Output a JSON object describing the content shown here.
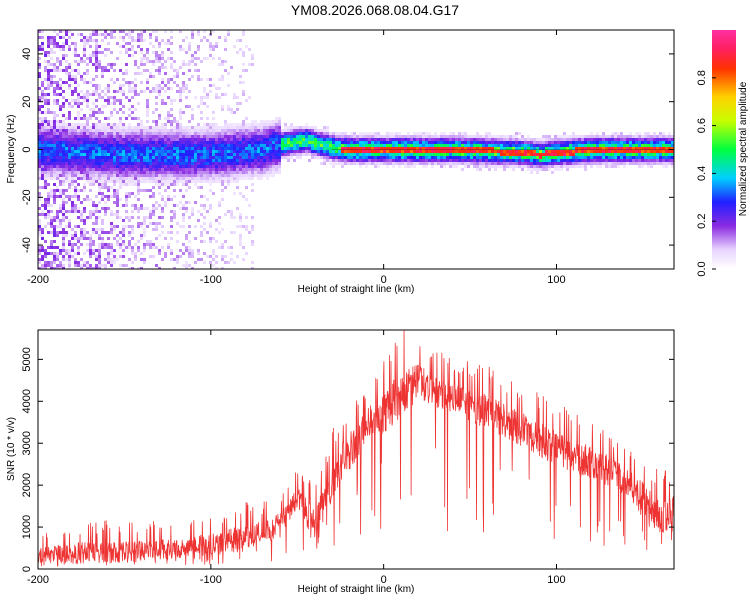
{
  "title": "YM08.2026.068.08.04.G17",
  "chart_data": [
    {
      "type": "heatmap",
      "name": "spectrogram",
      "xlabel": "Height of straight line (km)",
      "ylabel": "Frequency (Hz)",
      "xlim": [
        -200,
        168
      ],
      "ylim": [
        -50,
        50
      ],
      "xticks": [
        -200,
        -100,
        0,
        100
      ],
      "yticks": [
        -40,
        -20,
        0,
        20,
        40
      ],
      "colorbar": {
        "label": "Normalized spectral amplitude",
        "range": [
          0,
          1
        ],
        "ticks": [
          0.0,
          0.2,
          0.4,
          0.6,
          0.8
        ]
      },
      "features": [
        {
          "description": "diffuse noisy purple energy",
          "x_range": [
            -200,
            -75
          ],
          "freq_spread_hz": 50
        },
        {
          "description": "central ridge frequency track",
          "x": [
            -200,
            -150,
            -100,
            -70,
            -55,
            -45,
            -30,
            -20,
            0,
            40,
            80,
            90,
            120,
            168
          ],
          "freq_hz": [
            0,
            -2,
            -2,
            0,
            3,
            4,
            1,
            0,
            0,
            0,
            -1,
            -2,
            0,
            0
          ]
        }
      ]
    },
    {
      "type": "line",
      "name": "snr",
      "xlabel": "Height of straight line (km)",
      "ylabel": "SNR (10 * v/v)",
      "xlim": [
        -200,
        168
      ],
      "ylim": [
        0,
        5700
      ],
      "xticks": [
        -200,
        -100,
        0,
        100
      ],
      "yticks": [
        0,
        1000,
        2000,
        3000,
        4000,
        5000
      ],
      "color": "#ee3333",
      "series": [
        {
          "name": "SNR envelope",
          "x": [
            -200,
            -175,
            -150,
            -125,
            -100,
            -80,
            -65,
            -55,
            -50,
            -45,
            -40,
            -30,
            -25,
            -20,
            -10,
            0,
            10,
            20,
            30,
            40,
            60,
            80,
            100,
            120,
            140,
            150,
            160,
            168
          ],
          "mean": [
            300,
            350,
            400,
            450,
            550,
            700,
            900,
            1300,
            1700,
            1300,
            1000,
            2000,
            2500,
            2700,
            3400,
            3700,
            4100,
            4400,
            4200,
            4000,
            3700,
            3300,
            2800,
            2500,
            2100,
            1600,
            1200,
            1300
          ],
          "peak": [
            800,
            1100,
            1200,
            1100,
            1300,
            1600,
            1600,
            2000,
            2400,
            2300,
            2000,
            3300,
            3700,
            4100,
            4400,
            5200,
            5700,
            5700,
            5300,
            5000,
            4900,
            4500,
            4000,
            3600,
            3100,
            2800,
            2300,
            2600
          ]
        }
      ]
    }
  ]
}
